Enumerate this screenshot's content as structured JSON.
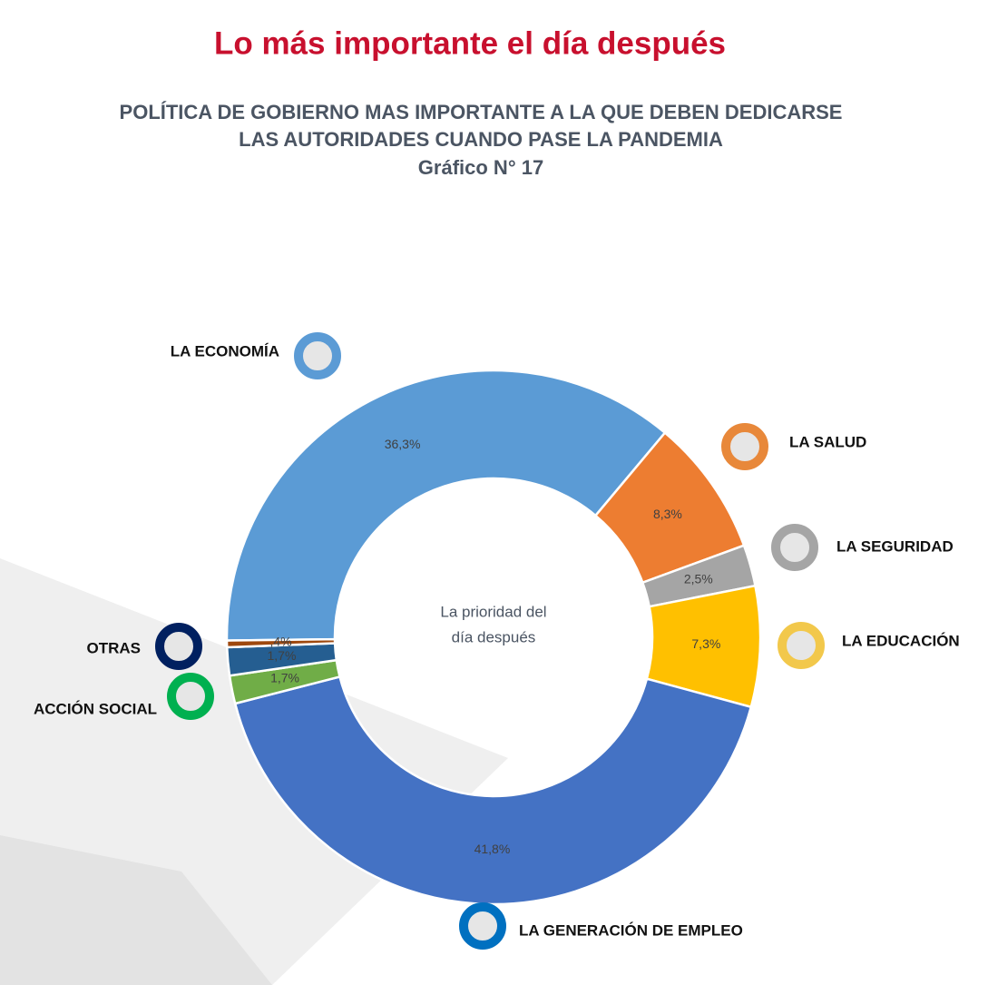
{
  "chart_data": {
    "type": "donut",
    "title": "Lo más importante el día después",
    "subtitle": [
      "POLÍTICA DE GOBIERNO MAS IMPORTANTE A LA QUE DEBEN DEDICARSE",
      "LAS AUTORIDADES CUANDO PASE LA PANDEMIA",
      "Gráfico N° 17"
    ],
    "center_text": [
      "La prioridad del",
      "día después"
    ],
    "categories": [
      "LA ECONOMÍA",
      "LA SALUD",
      "LA SEGURIDAD",
      "LA EDUCACIÓN",
      "LA GENERACIÓN DE EMPLEO",
      "ACCIÓN SOCIAL",
      "OTRAS",
      null
    ],
    "values": [
      36.3,
      8.3,
      2.5,
      7.3,
      41.8,
      1.7,
      1.7,
      0.4
    ],
    "value_labels": [
      "36,3%",
      "8,3%",
      "2,5%",
      "7,3%",
      "41,8%",
      "1,7%",
      "1,7%",
      ",4%"
    ],
    "colors": [
      "#5b9bd5",
      "#ed7d31",
      "#a5a5a5",
      "#ffc000",
      "#4472c4",
      "#70ad47",
      "#255e91",
      "#9e480e"
    ],
    "legend_colors": [
      "#5b9bd5",
      "#e8883a",
      "#a5a5a5",
      "#f2c84b",
      "#0070c0",
      "#00b050",
      "#002060",
      null
    ]
  }
}
